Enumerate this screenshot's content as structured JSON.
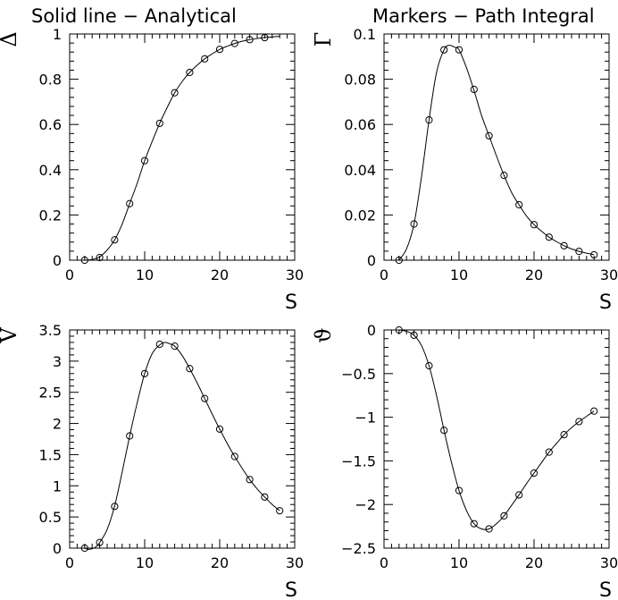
{
  "header": {
    "left": "Solid line − Analytical",
    "right": "Markers  − Path Integral"
  },
  "chart_data": [
    {
      "type": "line",
      "id": "delta",
      "ylabel": "Δ",
      "xlabel": "S",
      "xlim": [
        0,
        30
      ],
      "ylim": [
        0,
        1
      ],
      "xticks": [
        0,
        10,
        20,
        30
      ],
      "xtick_labels": [
        "0",
        "10",
        "20",
        "30"
      ],
      "yticks": [
        0,
        0.2,
        0.4,
        0.6,
        0.8,
        1
      ],
      "ytick_labels": [
        "0",
        "0.2",
        "0.4",
        "0.6",
        "0.8",
        "1"
      ],
      "series": [
        {
          "kind": "analytical",
          "x": [
            2,
            3,
            4,
            5,
            6,
            7,
            8,
            9,
            10,
            11,
            12,
            13,
            14,
            15,
            16,
            17,
            18,
            19,
            20,
            21,
            22,
            23,
            24,
            25,
            26,
            27,
            28
          ],
          "y": [
            0.0,
            0.003,
            0.015,
            0.045,
            0.09,
            0.16,
            0.25,
            0.34,
            0.44,
            0.525,
            0.605,
            0.675,
            0.74,
            0.79,
            0.83,
            0.862,
            0.89,
            0.912,
            0.932,
            0.946,
            0.958,
            0.968,
            0.975,
            0.98,
            0.984,
            0.987,
            0.99
          ]
        },
        {
          "kind": "path-integral",
          "x": [
            2,
            4,
            6,
            8,
            10,
            12,
            14,
            16,
            18,
            20,
            22,
            24,
            26
          ],
          "y": [
            0.0,
            0.012,
            0.09,
            0.25,
            0.44,
            0.605,
            0.74,
            0.83,
            0.89,
            0.932,
            0.958,
            0.975,
            0.984
          ]
        }
      ]
    },
    {
      "type": "line",
      "id": "gamma",
      "ylabel": "Γ",
      "xlabel": "S",
      "xlim": [
        0,
        30
      ],
      "ylim": [
        0,
        0.1
      ],
      "xticks": [
        0,
        10,
        20,
        30
      ],
      "xtick_labels": [
        "0",
        "10",
        "20",
        "30"
      ],
      "yticks": [
        0,
        0.02,
        0.04,
        0.06,
        0.08,
        0.1
      ],
      "ytick_labels": [
        "0",
        "0.02",
        "0.04",
        "0.06",
        "0.08",
        "0.1"
      ],
      "series": [
        {
          "kind": "analytical",
          "x": [
            2,
            3,
            4,
            5,
            6,
            7,
            8,
            8.7,
            9.5,
            10,
            11,
            12,
            13,
            14,
            15,
            16,
            17,
            18,
            19,
            20,
            21,
            22,
            23,
            24,
            25,
            26,
            27,
            28
          ],
          "y": [
            0.0,
            0.005,
            0.016,
            0.037,
            0.062,
            0.083,
            0.093,
            0.095,
            0.094,
            0.093,
            0.085,
            0.075,
            0.064,
            0.055,
            0.046,
            0.0375,
            0.03,
            0.0245,
            0.0195,
            0.0157,
            0.0128,
            0.0102,
            0.0082,
            0.0064,
            0.005,
            0.0039,
            0.0031,
            0.0024
          ]
        },
        {
          "kind": "path-integral",
          "x": [
            2,
            4,
            6,
            8,
            10,
            12,
            14,
            16,
            18,
            20,
            22,
            24,
            26,
            28
          ],
          "y": [
            0.0,
            0.016,
            0.062,
            0.093,
            0.093,
            0.0755,
            0.055,
            0.0375,
            0.0245,
            0.0157,
            0.0102,
            0.0064,
            0.0039,
            0.0024
          ]
        }
      ]
    },
    {
      "type": "line",
      "id": "v",
      "ylabel": "V",
      "xlabel": "S",
      "xlim": [
        0,
        30
      ],
      "ylim": [
        0,
        3.5
      ],
      "xticks": [
        0,
        10,
        20,
        30
      ],
      "xtick_labels": [
        "0",
        "10",
        "20",
        "30"
      ],
      "yticks": [
        0,
        0.5,
        1,
        1.5,
        2,
        2.5,
        3,
        3.5
      ],
      "ytick_labels": [
        "0",
        "0.5",
        "1",
        "1.5",
        "2",
        "2.5",
        "3",
        "3.5"
      ],
      "series": [
        {
          "kind": "analytical",
          "x": [
            2,
            2.5,
            3,
            3.5,
            4,
            5,
            6,
            7,
            8,
            9,
            10,
            11,
            12,
            12.7,
            13.5,
            14,
            15,
            16,
            17,
            18,
            19,
            20,
            21,
            22,
            23,
            24,
            25,
            26,
            27,
            28
          ],
          "y": [
            0.0,
            -0.02,
            -0.01,
            0.02,
            0.09,
            0.3,
            0.68,
            1.22,
            1.8,
            2.33,
            2.8,
            3.12,
            3.26,
            3.3,
            3.27,
            3.24,
            3.09,
            2.88,
            2.65,
            2.4,
            2.15,
            1.91,
            1.68,
            1.47,
            1.28,
            1.1,
            0.95,
            0.82,
            0.7,
            0.6
          ]
        },
        {
          "kind": "path-integral",
          "x": [
            2,
            4,
            6,
            8,
            10,
            12,
            14,
            16,
            18,
            20,
            22,
            24,
            26,
            28
          ],
          "y": [
            0.0,
            0.09,
            0.67,
            1.8,
            2.8,
            3.27,
            3.24,
            2.88,
            2.4,
            1.91,
            1.47,
            1.1,
            0.82,
            0.6
          ]
        }
      ]
    },
    {
      "type": "line",
      "id": "theta",
      "ylabel": "ϑ",
      "xlabel": "S",
      "xlim": [
        0,
        30
      ],
      "ylim": [
        -2.5,
        0
      ],
      "xticks": [
        0,
        10,
        20,
        30
      ],
      "xtick_labels": [
        "0",
        "10",
        "20",
        "30"
      ],
      "yticks": [
        -2.5,
        -2,
        -1.5,
        -1,
        -0.5,
        0
      ],
      "ytick_labels": [
        "−2.5",
        "−2",
        "−1.5",
        "−1",
        "−0.5",
        "0"
      ],
      "zero_line": true,
      "series": [
        {
          "kind": "analytical",
          "x": [
            2,
            3,
            4,
            5,
            6,
            7,
            8,
            9,
            10,
            11,
            12,
            13,
            14,
            15,
            16,
            17,
            18,
            19,
            20,
            21,
            22,
            23,
            24,
            25,
            26,
            27,
            28
          ],
          "y": [
            0.0,
            -0.015,
            -0.06,
            -0.18,
            -0.41,
            -0.75,
            -1.15,
            -1.52,
            -1.84,
            -2.07,
            -2.22,
            -2.28,
            -2.28,
            -2.22,
            -2.13,
            -2.01,
            -1.89,
            -1.76,
            -1.64,
            -1.52,
            -1.4,
            -1.3,
            -1.2,
            -1.12,
            -1.05,
            -0.99,
            -0.93
          ]
        },
        {
          "kind": "path-integral",
          "x": [
            2,
            4,
            6,
            8,
            10,
            12,
            14,
            16,
            18,
            20,
            22,
            24,
            26,
            28
          ],
          "y": [
            0.0,
            -0.06,
            -0.41,
            -1.15,
            -1.84,
            -2.22,
            -2.28,
            -2.13,
            -1.89,
            -1.64,
            -1.4,
            -1.2,
            -1.05,
            -0.93
          ]
        }
      ]
    }
  ]
}
